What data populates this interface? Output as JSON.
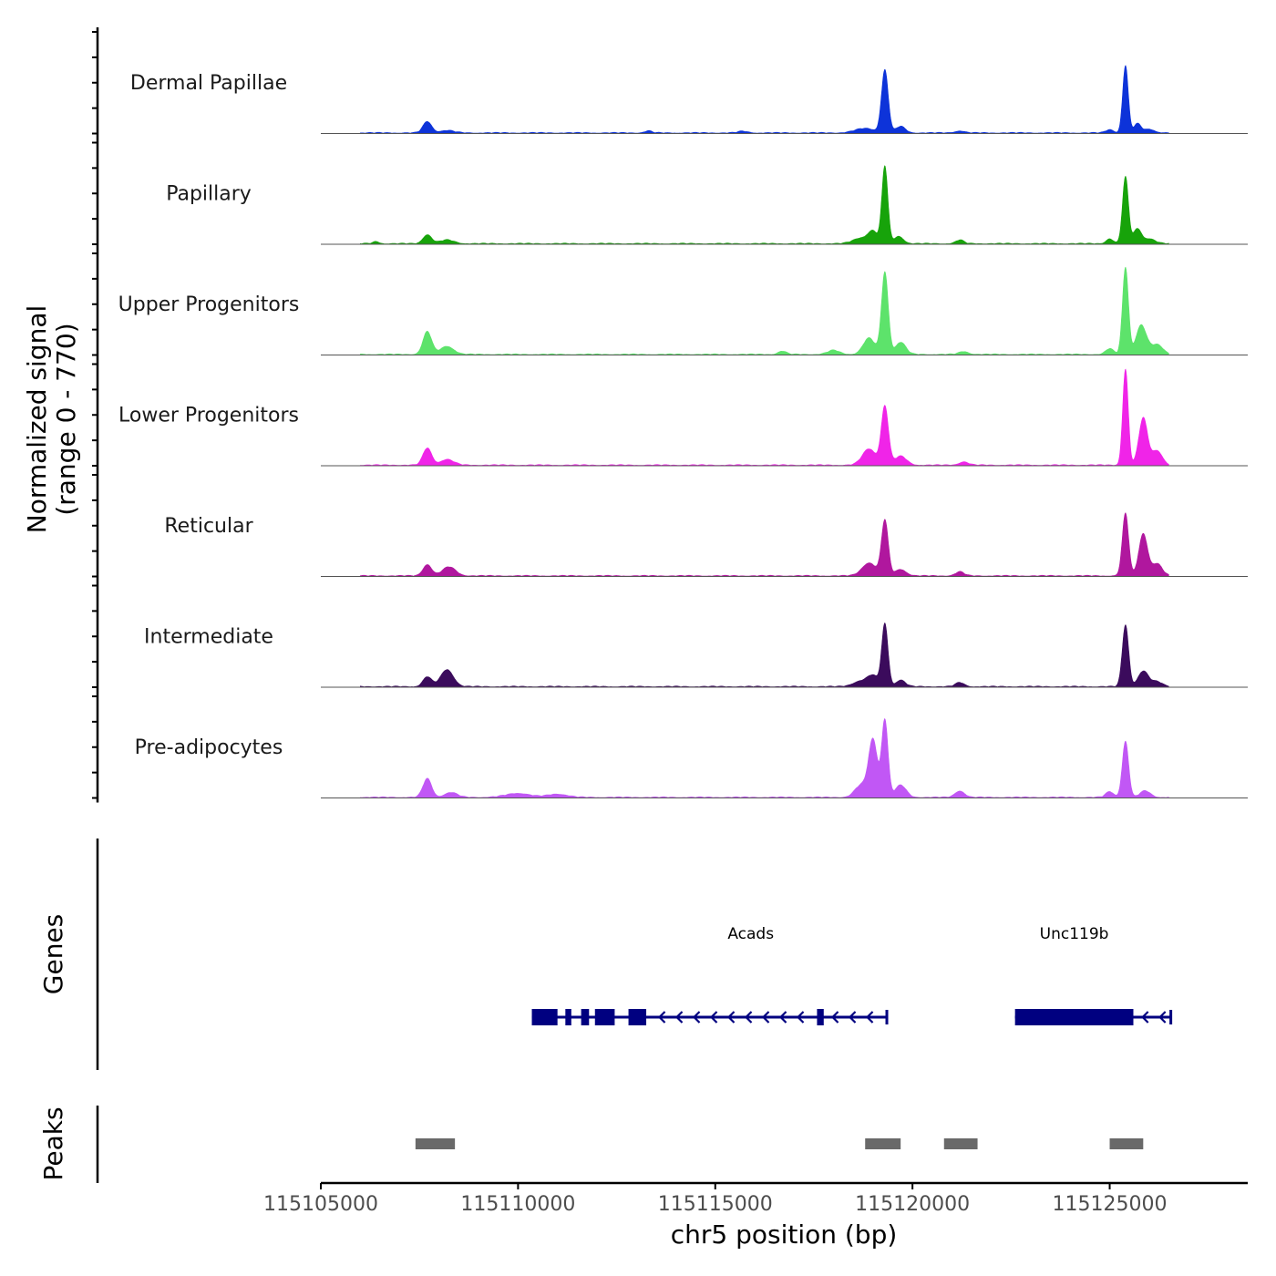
{
  "chart_data": {
    "type": "area",
    "title": "",
    "ylabel_line1": "Normalized signal",
    "ylabel_line2": "(range 0 - 770)",
    "yrange": [
      0,
      770
    ],
    "xlabel": "chr5 position (bp)",
    "xlim": [
      115105000,
      115128500
    ],
    "xticks": [
      115105000,
      115110000,
      115115000,
      115120000,
      115125000
    ],
    "xtick_labels": [
      "115105000",
      "115110000",
      "115115000",
      "115120000",
      "115125000"
    ],
    "signal_start": 115106000,
    "signal_end": 115126500,
    "series": [
      {
        "name": "Dermal Papillae",
        "color": "#0d33d9",
        "peaks": [
          {
            "pos": 115107700,
            "width": 110,
            "height": 140
          },
          {
            "pos": 115108200,
            "width": 180,
            "height": 30
          },
          {
            "pos": 115113300,
            "width": 90,
            "height": 25
          },
          {
            "pos": 115115700,
            "width": 120,
            "height": 20
          },
          {
            "pos": 115118800,
            "width": 250,
            "height": 55
          },
          {
            "pos": 115119300,
            "width": 85,
            "height": 770
          },
          {
            "pos": 115119700,
            "width": 120,
            "height": 80
          },
          {
            "pos": 115121200,
            "width": 120,
            "height": 25
          },
          {
            "pos": 115125000,
            "width": 100,
            "height": 40
          },
          {
            "pos": 115125400,
            "width": 70,
            "height": 830
          },
          {
            "pos": 115125700,
            "width": 90,
            "height": 110
          },
          {
            "pos": 115126000,
            "width": 140,
            "height": 45
          }
        ]
      },
      {
        "name": "Papillary",
        "color": "#17a30a",
        "peaks": [
          {
            "pos": 115106400,
            "width": 80,
            "height": 25
          },
          {
            "pos": 115107700,
            "width": 110,
            "height": 110
          },
          {
            "pos": 115108200,
            "width": 180,
            "height": 45
          },
          {
            "pos": 115118700,
            "width": 200,
            "height": 70
          },
          {
            "pos": 115119000,
            "width": 120,
            "height": 140
          },
          {
            "pos": 115119300,
            "width": 75,
            "height": 950
          },
          {
            "pos": 115119650,
            "width": 120,
            "height": 90
          },
          {
            "pos": 115121200,
            "width": 100,
            "height": 45
          },
          {
            "pos": 115125000,
            "width": 90,
            "height": 60
          },
          {
            "pos": 115125400,
            "width": 75,
            "height": 820
          },
          {
            "pos": 115125700,
            "width": 100,
            "height": 180
          },
          {
            "pos": 115126000,
            "width": 150,
            "height": 60
          }
        ]
      },
      {
        "name": "Upper Progenitors",
        "color": "#5de36b",
        "peaks": [
          {
            "pos": 115107700,
            "width": 110,
            "height": 280
          },
          {
            "pos": 115108200,
            "width": 170,
            "height": 100
          },
          {
            "pos": 115116700,
            "width": 100,
            "height": 40
          },
          {
            "pos": 115118000,
            "width": 150,
            "height": 50
          },
          {
            "pos": 115118900,
            "width": 150,
            "height": 200
          },
          {
            "pos": 115119300,
            "width": 85,
            "height": 1010
          },
          {
            "pos": 115119700,
            "width": 130,
            "height": 150
          },
          {
            "pos": 115121300,
            "width": 120,
            "height": 35
          },
          {
            "pos": 115125000,
            "width": 100,
            "height": 70
          },
          {
            "pos": 115125400,
            "width": 75,
            "height": 1070
          },
          {
            "pos": 115125800,
            "width": 130,
            "height": 360
          },
          {
            "pos": 115126200,
            "width": 150,
            "height": 120
          }
        ]
      },
      {
        "name": "Lower Progenitors",
        "color": "#f024e8",
        "peaks": [
          {
            "pos": 115107700,
            "width": 110,
            "height": 210
          },
          {
            "pos": 115108200,
            "width": 170,
            "height": 70
          },
          {
            "pos": 115118900,
            "width": 170,
            "height": 200
          },
          {
            "pos": 115119300,
            "width": 90,
            "height": 720
          },
          {
            "pos": 115119700,
            "width": 150,
            "height": 110
          },
          {
            "pos": 115121300,
            "width": 120,
            "height": 40
          },
          {
            "pos": 115125400,
            "width": 70,
            "height": 1180
          },
          {
            "pos": 115125850,
            "width": 110,
            "height": 580
          },
          {
            "pos": 115126200,
            "width": 130,
            "height": 180
          }
        ]
      },
      {
        "name": "Reticular",
        "color": "#b0179e",
        "peaks": [
          {
            "pos": 115107700,
            "width": 110,
            "height": 140
          },
          {
            "pos": 115108250,
            "width": 170,
            "height": 110
          },
          {
            "pos": 115118900,
            "width": 180,
            "height": 160
          },
          {
            "pos": 115119300,
            "width": 85,
            "height": 680
          },
          {
            "pos": 115119700,
            "width": 140,
            "height": 80
          },
          {
            "pos": 115121200,
            "width": 110,
            "height": 50
          },
          {
            "pos": 115125400,
            "width": 80,
            "height": 770
          },
          {
            "pos": 115125850,
            "width": 110,
            "height": 520
          },
          {
            "pos": 115126200,
            "width": 130,
            "height": 150
          }
        ]
      },
      {
        "name": "Intermediate",
        "color": "#3b0b5c",
        "peaks": [
          {
            "pos": 115107700,
            "width": 110,
            "height": 120
          },
          {
            "pos": 115108200,
            "width": 160,
            "height": 210
          },
          {
            "pos": 115118700,
            "width": 200,
            "height": 70
          },
          {
            "pos": 115119000,
            "width": 130,
            "height": 120
          },
          {
            "pos": 115119300,
            "width": 80,
            "height": 770
          },
          {
            "pos": 115119700,
            "width": 120,
            "height": 80
          },
          {
            "pos": 115121200,
            "width": 110,
            "height": 50
          },
          {
            "pos": 115125400,
            "width": 80,
            "height": 760
          },
          {
            "pos": 115125850,
            "width": 130,
            "height": 190
          },
          {
            "pos": 115126200,
            "width": 140,
            "height": 60
          }
        ]
      },
      {
        "name": "Pre-adipocytes",
        "color": "#c157f5",
        "peaks": [
          {
            "pos": 115107700,
            "width": 110,
            "height": 230
          },
          {
            "pos": 115108300,
            "width": 160,
            "height": 60
          },
          {
            "pos": 115110000,
            "width": 300,
            "height": 50
          },
          {
            "pos": 115111000,
            "width": 250,
            "height": 40
          },
          {
            "pos": 115118700,
            "width": 160,
            "height": 150
          },
          {
            "pos": 115119000,
            "width": 110,
            "height": 700
          },
          {
            "pos": 115119300,
            "width": 80,
            "height": 950
          },
          {
            "pos": 115119700,
            "width": 140,
            "height": 150
          },
          {
            "pos": 115121200,
            "width": 120,
            "height": 80
          },
          {
            "pos": 115125000,
            "width": 100,
            "height": 70
          },
          {
            "pos": 115125400,
            "width": 80,
            "height": 690
          },
          {
            "pos": 115125900,
            "width": 130,
            "height": 80
          }
        ]
      }
    ],
    "genes": [
      {
        "name": "Acads",
        "label_pos": 115115900,
        "start": 115110350,
        "end": 115119350,
        "strand": "-",
        "color": "#000080",
        "exons": [
          [
            115110350,
            115111000
          ],
          [
            115111200,
            115111350
          ],
          [
            115111600,
            115111800
          ],
          [
            115111950,
            115112450
          ],
          [
            115112800,
            115113250
          ],
          [
            115117580,
            115117750
          ]
        ]
      },
      {
        "name": "Unc119b",
        "label_pos": 115124100,
        "start": 115122600,
        "end": 115126550,
        "strand": "-",
        "color": "#000080",
        "exons": [
          [
            115122600,
            115125600
          ]
        ]
      }
    ],
    "peaks_track": {
      "color": "#696969",
      "regions": [
        [
          115107400,
          115108400
        ],
        [
          115118800,
          115119700
        ],
        [
          115120800,
          115121650
        ],
        [
          115125000,
          115125850
        ]
      ]
    },
    "track_titles": {
      "genes": "Genes",
      "peaks": "Peaks"
    }
  }
}
